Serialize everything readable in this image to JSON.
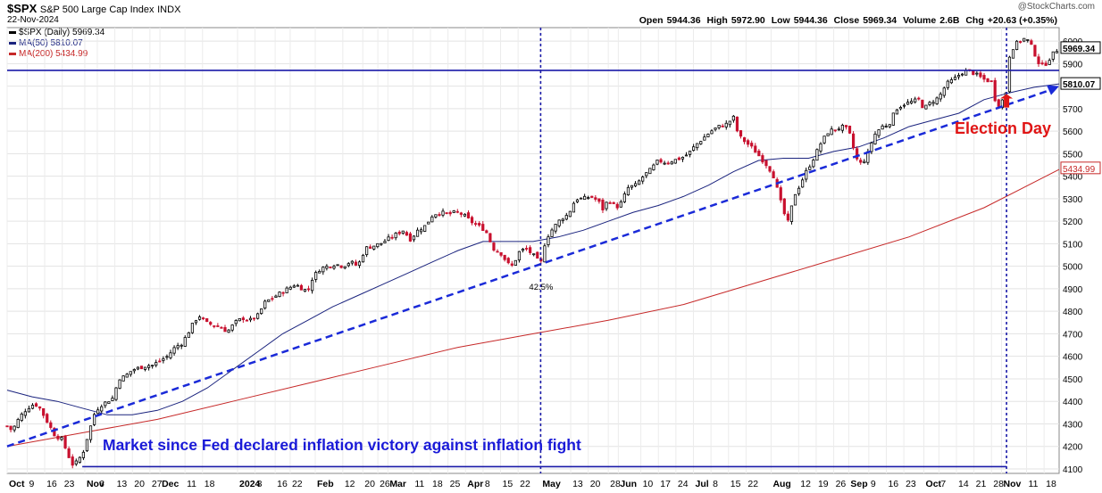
{
  "header": {
    "symbol": "$SPX",
    "name": "S&P 500 Large Cap Index",
    "exchange": "INDX",
    "date": "22-Nov-2024",
    "open_label": "Open",
    "open": "5944.36",
    "high_label": "High",
    "high": "5972.90",
    "low_label": "Low",
    "low": "5944.36",
    "close_label": "Close",
    "close": "5969.34",
    "volume_label": "Volume",
    "volume": "2.6B",
    "chg_label": "Chg",
    "chg": "+20.63 (+0.35%)",
    "watermark": "@StockCharts.com"
  },
  "legend": [
    {
      "label": "$SPX (Daily) 5969.34",
      "color": "#000000"
    },
    {
      "label": "MA(50) 5810.07",
      "color": "#1a237e"
    },
    {
      "label": "MA(200) 5434.99",
      "color": "#c62828"
    }
  ],
  "chart_data": {
    "type": "candlestick",
    "title": "$SPX S&P 500 Large Cap Index INDX",
    "ylim": [
      4080,
      6060
    ],
    "y_ticks": [
      4100,
      4200,
      4300,
      4400,
      4500,
      4600,
      4700,
      4800,
      4900,
      5000,
      5100,
      5200,
      5300,
      5400,
      5500,
      5600,
      5700,
      5800,
      5900,
      6000
    ],
    "x_range_days": [
      0,
      420
    ],
    "x_ticks": [
      {
        "label": "Oct",
        "day": 0,
        "bold": true
      },
      {
        "label": "9",
        "day": 8
      },
      {
        "label": "16",
        "day": 15
      },
      {
        "label": "23",
        "day": 22
      },
      {
        "label": "Nov",
        "day": 31,
        "bold": true
      },
      {
        "label": "6",
        "day": 36
      },
      {
        "label": "13",
        "day": 43
      },
      {
        "label": "20",
        "day": 50
      },
      {
        "label": "27",
        "day": 57
      },
      {
        "label": "Dec",
        "day": 61,
        "bold": true
      },
      {
        "label": "11",
        "day": 71
      },
      {
        "label": "18",
        "day": 78
      },
      {
        "label": "2024",
        "day": 92,
        "bold": true
      },
      {
        "label": "8",
        "day": 99
      },
      {
        "label": "16",
        "day": 107
      },
      {
        "label": "22",
        "day": 113
      },
      {
        "label": "Feb",
        "day": 123,
        "bold": true
      },
      {
        "label": "12",
        "day": 134
      },
      {
        "label": "20",
        "day": 142
      },
      {
        "label": "26",
        "day": 148
      },
      {
        "label": "Mar",
        "day": 152,
        "bold": true
      },
      {
        "label": "11",
        "day": 162
      },
      {
        "label": "18",
        "day": 169
      },
      {
        "label": "25",
        "day": 176
      },
      {
        "label": "Apr",
        "day": 183,
        "bold": true
      },
      {
        "label": "8",
        "day": 190
      },
      {
        "label": "15",
        "day": 197
      },
      {
        "label": "22",
        "day": 204
      },
      {
        "label": "May",
        "day": 213,
        "bold": true
      },
      {
        "label": "13",
        "day": 225
      },
      {
        "label": "20",
        "day": 232
      },
      {
        "label": "28",
        "day": 240
      },
      {
        "label": "Jun",
        "day": 244,
        "bold": true
      },
      {
        "label": "10",
        "day": 253
      },
      {
        "label": "17",
        "day": 260
      },
      {
        "label": "24",
        "day": 267
      },
      {
        "label": "Jul",
        "day": 274,
        "bold": true
      },
      {
        "label": "8",
        "day": 281
      },
      {
        "label": "15",
        "day": 288
      },
      {
        "label": "22",
        "day": 295
      },
      {
        "label": "Aug",
        "day": 305,
        "bold": true
      },
      {
        "label": "12",
        "day": 316
      },
      {
        "label": "19",
        "day": 323
      },
      {
        "label": "26",
        "day": 330
      },
      {
        "label": "Sep",
        "day": 336,
        "bold": true
      },
      {
        "label": "9",
        "day": 344
      },
      {
        "label": "16",
        "day": 351
      },
      {
        "label": "23",
        "day": 358
      },
      {
        "label": "Oct",
        "day": 366,
        "bold": true
      },
      {
        "label": "7",
        "day": 372
      },
      {
        "label": "14",
        "day": 379
      },
      {
        "label": "21",
        "day": 386
      },
      {
        "label": "28",
        "day": 393
      },
      {
        "label": "Nov",
        "day": 397,
        "bold": true
      },
      {
        "label": "11",
        "day": 407
      },
      {
        "label": "18",
        "day": 414
      }
    ],
    "price_path": [
      [
        0,
        4290
      ],
      [
        2,
        4270
      ],
      [
        5,
        4330
      ],
      [
        8,
        4370
      ],
      [
        11,
        4390
      ],
      [
        13,
        4370
      ],
      [
        16,
        4310
      ],
      [
        19,
        4250
      ],
      [
        22,
        4230
      ],
      [
        24,
        4170
      ],
      [
        26,
        4120
      ],
      [
        28,
        4130
      ],
      [
        31,
        4190
      ],
      [
        32,
        4240
      ],
      [
        35,
        4350
      ],
      [
        37,
        4380
      ],
      [
        40,
        4400
      ],
      [
        43,
        4420
      ],
      [
        44,
        4500
      ],
      [
        47,
        4510
      ],
      [
        50,
        4540
      ],
      [
        53,
        4550
      ],
      [
        56,
        4560
      ],
      [
        58,
        4560
      ],
      [
        61,
        4580
      ],
      [
        64,
        4600
      ],
      [
        67,
        4640
      ],
      [
        70,
        4660
      ],
      [
        72,
        4700
      ],
      [
        75,
        4760
      ],
      [
        77,
        4780
      ],
      [
        79,
        4750
      ],
      [
        82,
        4740
      ],
      [
        85,
        4730
      ],
      [
        88,
        4710
      ],
      [
        91,
        4750
      ],
      [
        94,
        4770
      ],
      [
        97,
        4760
      ],
      [
        100,
        4780
      ],
      [
        103,
        4840
      ],
      [
        106,
        4860
      ],
      [
        109,
        4880
      ],
      [
        112,
        4900
      ],
      [
        115,
        4920
      ],
      [
        118,
        4900
      ],
      [
        120,
        4890
      ],
      [
        122,
        4950
      ],
      [
        125,
        4990
      ],
      [
        128,
        5000
      ],
      [
        131,
        5010
      ],
      [
        134,
        5000
      ],
      [
        137,
        5020
      ],
      [
        140,
        5000
      ],
      [
        143,
        5080
      ],
      [
        146,
        5090
      ],
      [
        149,
        5100
      ],
      [
        152,
        5120
      ],
      [
        155,
        5140
      ],
      [
        158,
        5160
      ],
      [
        161,
        5120
      ],
      [
        164,
        5160
      ],
      [
        167,
        5180
      ],
      [
        170,
        5230
      ],
      [
        173,
        5240
      ],
      [
        176,
        5230
      ],
      [
        179,
        5240
      ],
      [
        182,
        5230
      ],
      [
        185,
        5200
      ],
      [
        188,
        5180
      ],
      [
        191,
        5160
      ],
      [
        194,
        5080
      ],
      [
        197,
        5060
      ],
      [
        200,
        5010
      ],
      [
        202,
        5000
      ],
      [
        204,
        5060
      ],
      [
        207,
        5080
      ],
      [
        210,
        5050
      ],
      [
        213,
        5010
      ],
      [
        215,
        5120
      ],
      [
        218,
        5170
      ],
      [
        221,
        5210
      ],
      [
        224,
        5230
      ],
      [
        227,
        5300
      ],
      [
        230,
        5300
      ],
      [
        233,
        5310
      ],
      [
        236,
        5290
      ],
      [
        238,
        5250
      ],
      [
        240,
        5300
      ],
      [
        243,
        5260
      ],
      [
        245,
        5280
      ],
      [
        248,
        5350
      ],
      [
        251,
        5360
      ],
      [
        254,
        5400
      ],
      [
        257,
        5430
      ],
      [
        260,
        5470
      ],
      [
        263,
        5460
      ],
      [
        266,
        5470
      ],
      [
        269,
        5480
      ],
      [
        272,
        5500
      ],
      [
        275,
        5540
      ],
      [
        278,
        5570
      ],
      [
        281,
        5600
      ],
      [
        284,
        5620
      ],
      [
        287,
        5630
      ],
      [
        290,
        5660
      ],
      [
        292,
        5580
      ],
      [
        295,
        5550
      ],
      [
        298,
        5520
      ],
      [
        301,
        5480
      ],
      [
        304,
        5440
      ],
      [
        306,
        5400
      ],
      [
        308,
        5320
      ],
      [
        310,
        5240
      ],
      [
        312,
        5190
      ],
      [
        314,
        5310
      ],
      [
        316,
        5350
      ],
      [
        319,
        5420
      ],
      [
        322,
        5480
      ],
      [
        325,
        5550
      ],
      [
        328,
        5600
      ],
      [
        331,
        5610
      ],
      [
        334,
        5620
      ],
      [
        336,
        5600
      ],
      [
        338,
        5520
      ],
      [
        340,
        5450
      ],
      [
        343,
        5480
      ],
      [
        346,
        5580
      ],
      [
        349,
        5620
      ],
      [
        352,
        5630
      ],
      [
        355,
        5700
      ],
      [
        358,
        5720
      ],
      [
        361,
        5730
      ],
      [
        364,
        5740
      ],
      [
        366,
        5700
      ],
      [
        369,
        5730
      ],
      [
        372,
        5750
      ],
      [
        375,
        5810
      ],
      [
        378,
        5830
      ],
      [
        381,
        5860
      ],
      [
        384,
        5870
      ],
      [
        387,
        5850
      ],
      [
        390,
        5830
      ],
      [
        393,
        5820
      ],
      [
        395,
        5710
      ],
      [
        397,
        5730
      ],
      [
        399,
        5780
      ],
      [
        400,
        5930
      ],
      [
        402,
        5980
      ],
      [
        404,
        6000
      ],
      [
        406,
        6010
      ],
      [
        408,
        6000
      ],
      [
        410,
        5950
      ],
      [
        412,
        5900
      ],
      [
        414,
        5890
      ],
      [
        416,
        5920
      ],
      [
        418,
        5950
      ],
      [
        420,
        5969
      ]
    ],
    "series": [
      {
        "name": "MA(50)",
        "value": 5810.07,
        "color": "#1a237e",
        "points": [
          [
            0,
            4450
          ],
          [
            10,
            4420
          ],
          [
            20,
            4400
          ],
          [
            30,
            4370
          ],
          [
            40,
            4340
          ],
          [
            50,
            4340
          ],
          [
            60,
            4360
          ],
          [
            70,
            4400
          ],
          [
            80,
            4460
          ],
          [
            90,
            4540
          ],
          [
            100,
            4620
          ],
          [
            110,
            4700
          ],
          [
            120,
            4760
          ],
          [
            130,
            4820
          ],
          [
            140,
            4870
          ],
          [
            150,
            4920
          ],
          [
            160,
            4970
          ],
          [
            170,
            5020
          ],
          [
            180,
            5070
          ],
          [
            190,
            5110
          ],
          [
            200,
            5110
          ],
          [
            210,
            5110
          ],
          [
            220,
            5130
          ],
          [
            230,
            5160
          ],
          [
            240,
            5200
          ],
          [
            250,
            5240
          ],
          [
            260,
            5270
          ],
          [
            270,
            5310
          ],
          [
            280,
            5360
          ],
          [
            290,
            5420
          ],
          [
            300,
            5470
          ],
          [
            310,
            5480
          ],
          [
            320,
            5480
          ],
          [
            330,
            5510
          ],
          [
            340,
            5530
          ],
          [
            350,
            5570
          ],
          [
            360,
            5620
          ],
          [
            370,
            5650
          ],
          [
            380,
            5680
          ],
          [
            390,
            5740
          ],
          [
            400,
            5770
          ],
          [
            410,
            5795
          ],
          [
            420,
            5810
          ]
        ]
      },
      {
        "name": "MA(200)",
        "value": 5434.99,
        "color": "#c62828",
        "points": [
          [
            0,
            4200
          ],
          [
            30,
            4260
          ],
          [
            60,
            4320
          ],
          [
            90,
            4400
          ],
          [
            120,
            4480
          ],
          [
            150,
            4560
          ],
          [
            180,
            4640
          ],
          [
            210,
            4700
          ],
          [
            240,
            4760
          ],
          [
            270,
            4830
          ],
          [
            300,
            4930
          ],
          [
            330,
            5030
          ],
          [
            360,
            5130
          ],
          [
            390,
            5260
          ],
          [
            420,
            5430
          ]
        ]
      }
    ],
    "annotations": {
      "horizontal_level": 5870,
      "support_level": 4110,
      "trendline_start": [
        0,
        4200
      ],
      "trendline_end": [
        420,
        5800
      ],
      "vertical_markers": [
        213,
        399
      ],
      "pct_label": "42.5%",
      "pct_label_day": 213,
      "election_label": "Election Day",
      "election_day": 399,
      "caption": "Market since Fed declared inflation victory against inflation fight"
    },
    "right_axis_tags": [
      {
        "label": "5969.34",
        "value": 5969.34,
        "style": "boxed"
      },
      {
        "label": "5810.07",
        "value": 5810.07,
        "style": "boxed"
      },
      {
        "label": "5434.99",
        "value": 5434.99,
        "style": "red"
      }
    ]
  }
}
